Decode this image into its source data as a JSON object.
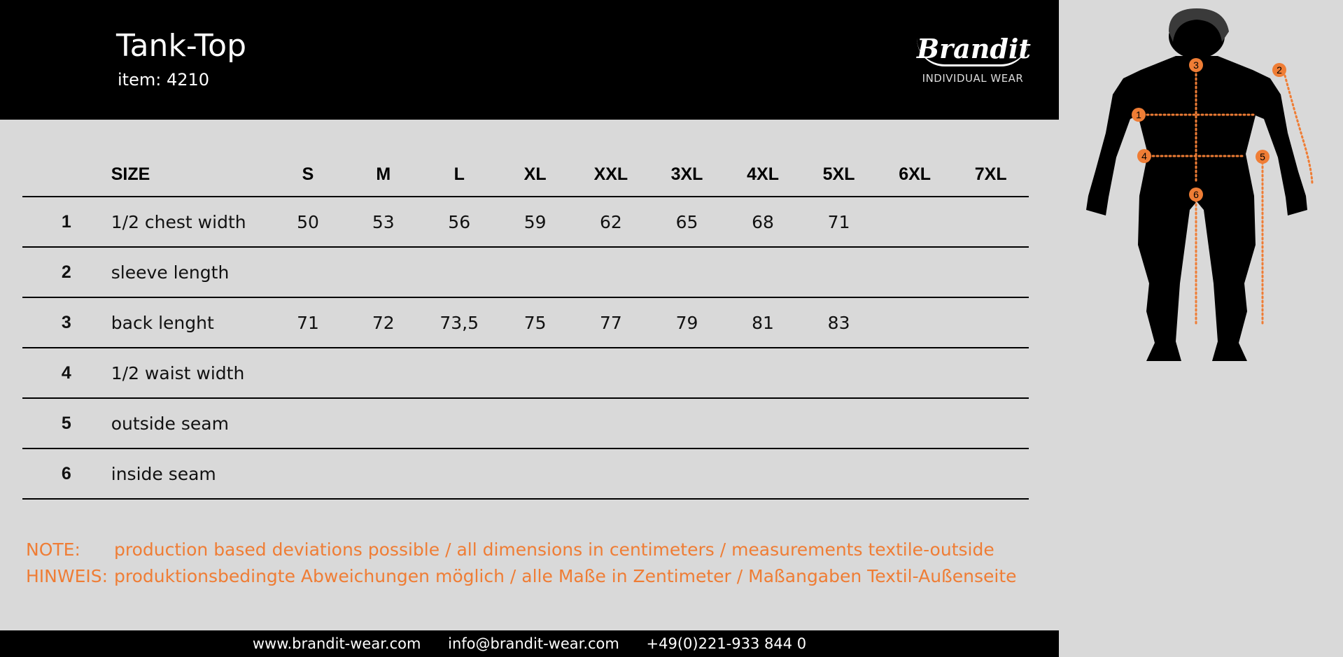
{
  "header": {
    "title": "Tank-Top",
    "item": "item: 4210",
    "logo_text": "Brandit",
    "logo_sub": "INDIVIDUAL WEAR"
  },
  "table": {
    "size_label": "SIZE",
    "sizes": [
      "S",
      "M",
      "L",
      "XL",
      "XXL",
      "3XL",
      "4XL",
      "5XL",
      "6XL",
      "7XL"
    ],
    "rows": [
      {
        "num": "1",
        "label": "1/2 chest width",
        "values": [
          "50",
          "53",
          "56",
          "59",
          "62",
          "65",
          "68",
          "71",
          "",
          ""
        ]
      },
      {
        "num": "2",
        "label": "sleeve length",
        "values": [
          "",
          "",
          "",
          "",
          "",
          "",
          "",
          "",
          "",
          ""
        ]
      },
      {
        "num": "3",
        "label": "back lenght",
        "values": [
          "71",
          "72",
          "73,5",
          "75",
          "77",
          "79",
          "81",
          "83",
          "",
          ""
        ]
      },
      {
        "num": "4",
        "label": "1/2 waist width",
        "values": [
          "",
          "",
          "",
          "",
          "",
          "",
          "",
          "",
          "",
          ""
        ]
      },
      {
        "num": "5",
        "label": "outside seam",
        "values": [
          "",
          "",
          "",
          "",
          "",
          "",
          "",
          "",
          "",
          ""
        ]
      },
      {
        "num": "6",
        "label": "inside seam",
        "values": [
          "",
          "",
          "",
          "",
          "",
          "",
          "",
          "",
          "",
          ""
        ]
      }
    ]
  },
  "notes": [
    {
      "key": "NOTE:",
      "text": "production based deviations possible / all dimensions in centimeters / measurements textile-outside"
    },
    {
      "key": "HINWEIS:",
      "text": "produktionsbedingte Abweichungen möglich / alle Maße in Zentimeter / Maßangaben Textil-Außenseite"
    }
  ],
  "footer": {
    "website": "www.brandit-wear.com",
    "email": "info@brandit-wear.com",
    "phone": "+49(0)221-933 844 0"
  },
  "figure": {
    "markers": [
      "1",
      "2",
      "3",
      "4",
      "5",
      "6"
    ]
  },
  "colors": {
    "accent": "#ef7d35",
    "background": "#d9d9d9",
    "header": "#000000"
  }
}
